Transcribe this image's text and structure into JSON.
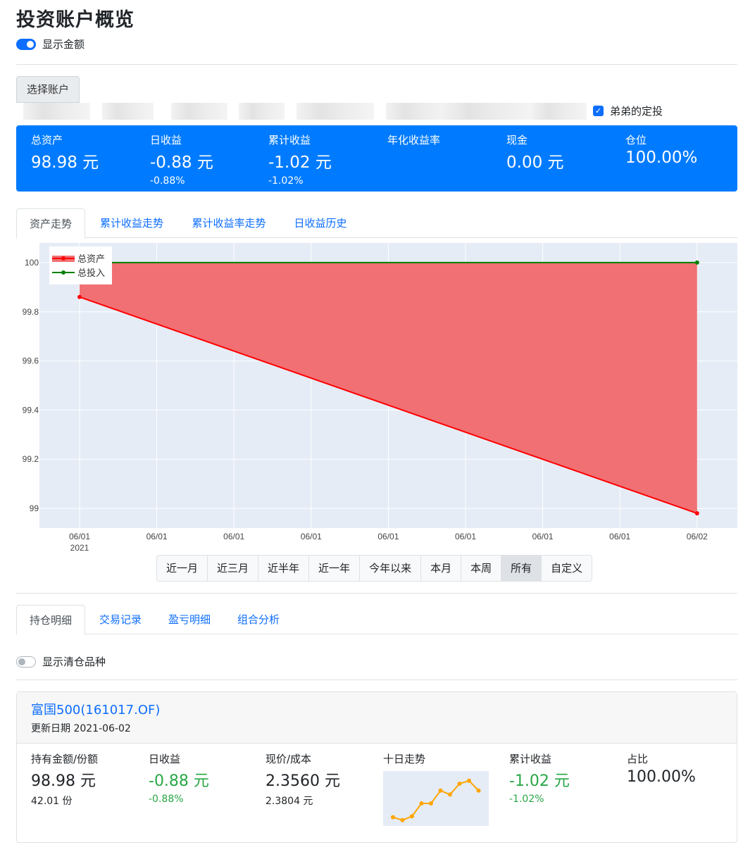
{
  "page": {
    "title": "投资账户概览"
  },
  "show_amount": {
    "label": "显示金额",
    "on": true
  },
  "account": {
    "select_label": "选择账户",
    "checkbox_label": "弟弟的定投",
    "checked": true
  },
  "summary": {
    "bg_color": "#007bff",
    "cells": [
      {
        "label": "总资产",
        "value": "98.98 元",
        "sub": ""
      },
      {
        "label": "日收益",
        "value": "-0.88 元",
        "sub": "-0.88%"
      },
      {
        "label": "累计收益",
        "value": "-1.02 元",
        "sub": "-1.02%"
      },
      {
        "label": "年化收益率",
        "value": "",
        "sub": ""
      },
      {
        "label": "现金",
        "value": "0.00 元",
        "sub": ""
      },
      {
        "label": "仓位",
        "value": "100.00%",
        "sub": ""
      }
    ]
  },
  "chart_tabs": [
    "资产走势",
    "累计收益走势",
    "累计收益率走势",
    "日收益历史"
  ],
  "chart_data": {
    "type": "area",
    "x": [
      "06/01\n2021",
      "06/01",
      "06/01",
      "06/01",
      "06/01",
      "06/01",
      "06/01",
      "06/01",
      "06/02"
    ],
    "series": [
      {
        "name": "总资产",
        "x": [
          0,
          8
        ],
        "values": [
          99.86,
          98.98
        ],
        "color": "#ff0000",
        "fill": "#f07074"
      },
      {
        "name": "总投入",
        "x": [
          0,
          8
        ],
        "values": [
          100,
          100
        ],
        "color": "#008000"
      }
    ],
    "ylim": [
      98.92,
      100.08
    ],
    "yticks": [
      99,
      99.2,
      99.4,
      99.6,
      99.8,
      100
    ],
    "ytick_labels": [
      "99",
      "99.2",
      "99.4",
      "99.6",
      "99.8",
      "100"
    ],
    "grid": true,
    "legend": "top-left"
  },
  "range_buttons": [
    "近一月",
    "近三月",
    "近半年",
    "近一年",
    "今年以来",
    "本月",
    "本周",
    "所有",
    "自定义"
  ],
  "range_active": 7,
  "holding_tabs": [
    "持仓明细",
    "交易记录",
    "盈亏明细",
    "组合分析"
  ],
  "show_cleared": {
    "label": "显示清仓品种",
    "on": false
  },
  "holding": {
    "name": "富国500(161017.OF)",
    "date": "更新日期 2021-06-02",
    "cols": [
      {
        "label": "持有金额/份额",
        "value": "98.98 元",
        "sub": "42.01 份"
      },
      {
        "label": "日收益",
        "value": "-0.88 元",
        "sub": "-0.88%"
      },
      {
        "label": "现价/成本",
        "value": "2.3560 元",
        "sub": "2.3804 元"
      },
      {
        "label": "十日走势",
        "value": "",
        "sub": ""
      },
      {
        "label": "累计收益",
        "value": "-1.02 元",
        "sub": "-1.02%"
      },
      {
        "label": "占比",
        "value": "100.00%",
        "sub": ""
      }
    ],
    "sparkline": [
      0.12,
      0.06,
      0.14,
      0.4,
      0.4,
      0.66,
      0.58,
      0.8,
      0.86,
      0.66
    ],
    "sparkline_color": "#ffa500",
    "gain_color": "#28a745"
  }
}
